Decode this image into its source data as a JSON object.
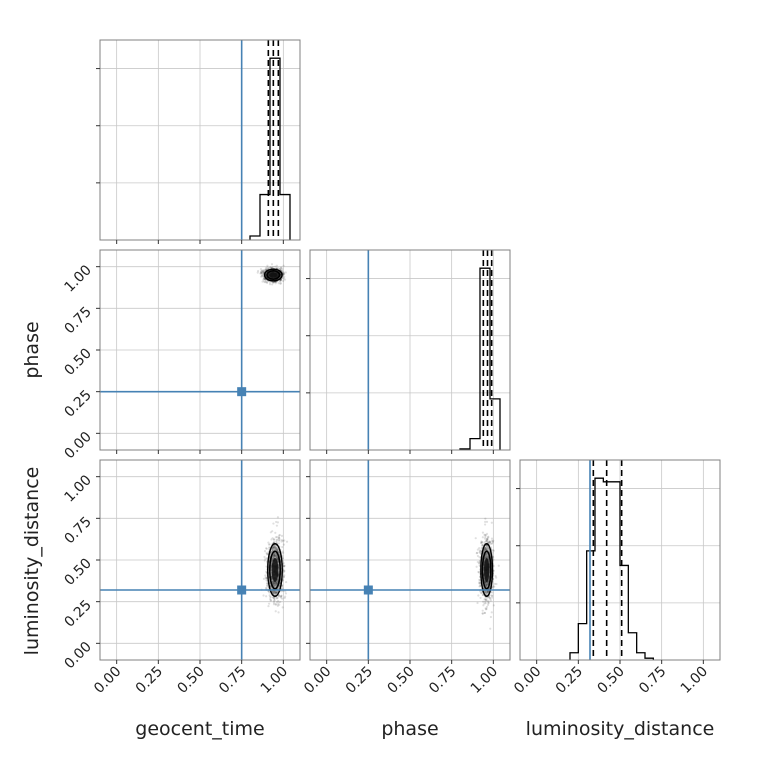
{
  "chart_data": {
    "type": "corner",
    "parameters": [
      "geocent_time",
      "phase",
      "luminosity_distance"
    ],
    "axis_range": [
      -0.1,
      1.1
    ],
    "tick_values": [
      0.0,
      0.25,
      0.5,
      0.75,
      1.0
    ],
    "tick_labels": [
      "0.00",
      "0.25",
      "0.50",
      "0.75",
      "1.00"
    ],
    "truths": {
      "geocent_time": 0.75,
      "phase": 0.25,
      "luminosity_distance": 0.32
    },
    "colors": {
      "truth": "#4682b4",
      "hist": "#000000",
      "grid": "#c8c8c8",
      "frame": "#808080"
    },
    "grid": true,
    "marginals": [
      {
        "parameter": "geocent_time",
        "bin_edges": [
          0.8,
          0.86,
          0.92,
          0.98,
          1.04
        ],
        "counts": [
          0.07,
          0.8,
          3.2,
          0.8
        ],
        "quantiles": [
          0.91,
          0.94,
          0.97
        ]
      },
      {
        "parameter": "phase",
        "bin_edges": [
          0.8,
          0.86,
          0.92,
          0.98,
          1.04
        ],
        "counts": [
          0.02,
          0.2,
          3.2,
          0.9
        ],
        "quantiles": [
          0.94,
          0.965,
          0.99
        ]
      },
      {
        "parameter": "luminosity_distance",
        "bin_edges": [
          0.2,
          0.25,
          0.3,
          0.35,
          0.4,
          0.45,
          0.5,
          0.55,
          0.6,
          0.65,
          0.7
        ],
        "counts": [
          0.04,
          0.2,
          0.6,
          1.0,
          0.98,
          0.98,
          0.52,
          0.15,
          0.04,
          0.01
        ],
        "quantiles": [
          0.34,
          0.42,
          0.51
        ]
      }
    ],
    "scatter": [
      {
        "x_parameter": "geocent_time",
        "y_parameter": "phase",
        "mean": [
          0.94,
          0.95
        ],
        "spread": [
          0.03,
          0.02
        ]
      },
      {
        "x_parameter": "geocent_time",
        "y_parameter": "luminosity_distance",
        "mean": [
          0.95,
          0.44
        ],
        "spread": [
          0.025,
          0.09
        ]
      },
      {
        "x_parameter": "phase",
        "y_parameter": "luminosity_distance",
        "mean": [
          0.96,
          0.44
        ],
        "spread": [
          0.02,
          0.09
        ]
      }
    ]
  }
}
